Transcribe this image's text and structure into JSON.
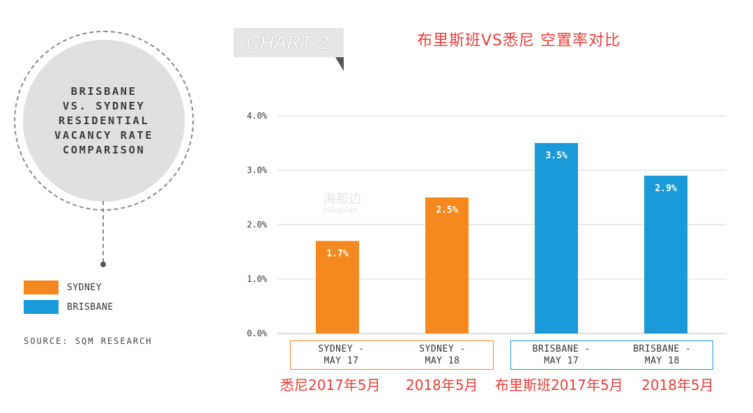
{
  "sidebar": {
    "circle_title": "BRISBANE\nVS. SYDNEY\nRESIDENTIAL\nVACANCY RATE\nCOMPARISON",
    "legend": [
      {
        "label": "SYDNEY",
        "color": "#f5891f"
      },
      {
        "label": "BRISBANE",
        "color": "#1a9ad9"
      }
    ],
    "source": "SOURCE: SQM RESEARCH"
  },
  "header": {
    "chart_tag": "CHART 2",
    "cn_title": "布里斯班VS悉尼 空置率对比"
  },
  "watermark": {
    "cn": "海那边",
    "en": "Hinabian"
  },
  "chart_data": {
    "type": "bar",
    "title": "BRISBANE VS. SYDNEY RESIDENTIAL VACANCY RATE COMPARISON",
    "ylabel": "",
    "xlabel": "",
    "ylim": [
      0,
      4.0
    ],
    "yticks": [
      {
        "value": 0,
        "label": "0.0%"
      },
      {
        "value": 1,
        "label": "1.0%"
      },
      {
        "value": 2,
        "label": "2.0%"
      },
      {
        "value": 3,
        "label": "3.0%"
      },
      {
        "value": 4,
        "label": "4.0%"
      }
    ],
    "bars": [
      {
        "category": "SYDNEY - MAY 17",
        "series": "SYDNEY",
        "value": 1.7,
        "label": "1.7%",
        "color": "#f5891f"
      },
      {
        "category": "SYDNEY - MAY 18",
        "series": "SYDNEY",
        "value": 2.5,
        "label": "2.5%",
        "color": "#f5891f"
      },
      {
        "category": "BRISBANE - MAY 17",
        "series": "BRISBANE",
        "value": 3.5,
        "label": "3.5%",
        "color": "#1a9ad9"
      },
      {
        "category": "BRISBANE - MAY 18",
        "series": "BRISBANE",
        "value": 2.9,
        "label": "2.9%",
        "color": "#1a9ad9"
      }
    ],
    "category_groups": [
      {
        "name": "SYDNEY",
        "color": "#f5891f",
        "labels": [
          "SYDNEY -\nMAY 17",
          "SYDNEY -\nMAY 18"
        ]
      },
      {
        "name": "BRISBANE",
        "color": "#1a9ad9",
        "labels": [
          "BRISBANE -\nMAY 17",
          "BRISBANE -\nMAY 18"
        ]
      }
    ],
    "cn_labels": [
      "悉尼2017年5月",
      "2018年5月",
      "布里斯班2017年5月",
      "2018年5月"
    ],
    "legend": [
      "SYDNEY",
      "BRISBANE"
    ],
    "grid": true
  }
}
